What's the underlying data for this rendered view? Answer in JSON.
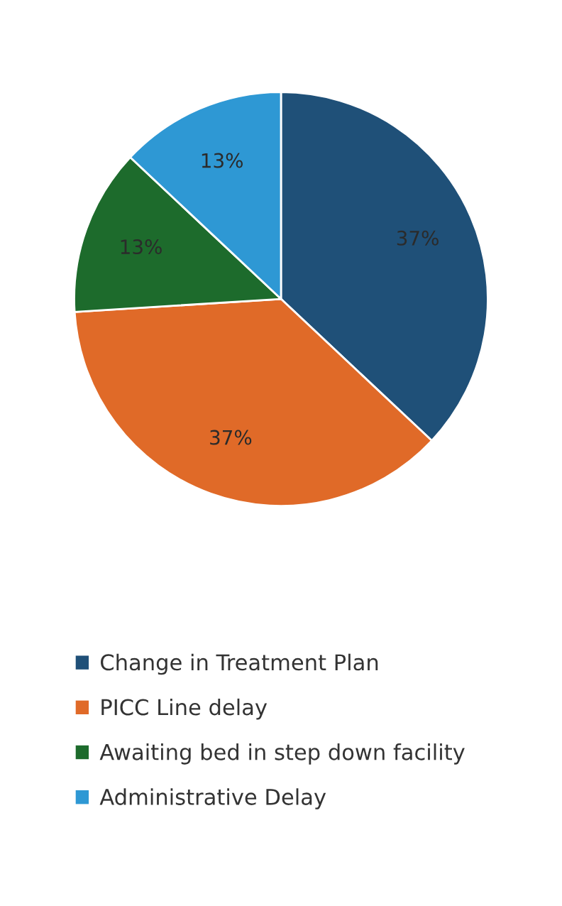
{
  "chart_data": {
    "type": "pie",
    "categories": [
      "Change in Treatment Plan",
      "PICC Line delay",
      "Awaiting bed in step down facility",
      "Administrative Delay"
    ],
    "values": [
      37,
      37,
      13,
      13
    ],
    "colors": [
      "#1f5078",
      "#e06a28",
      "#1d6b2c",
      "#2e98d4"
    ],
    "value_labels": [
      "37%",
      "37%",
      "13%",
      "13%"
    ],
    "legend": "bottom"
  }
}
